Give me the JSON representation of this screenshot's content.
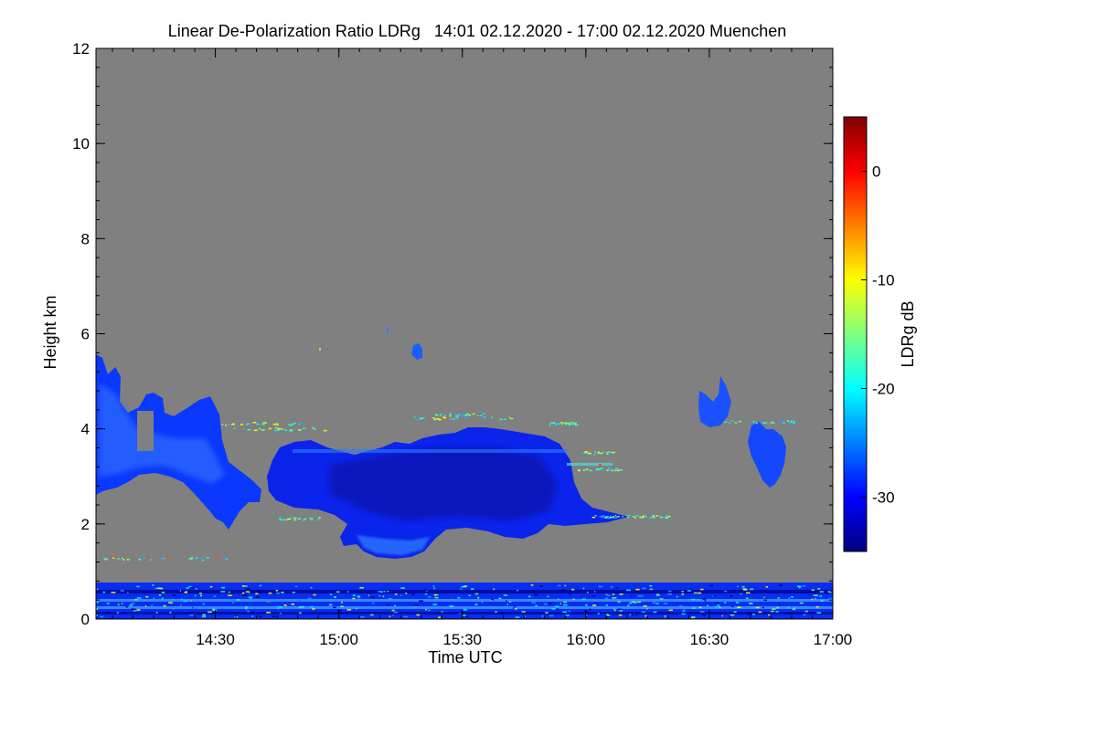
{
  "chart_data": {
    "type": "heatmap",
    "title": "Linear De-Polarization Ratio LDRg   14:01 02.12.2020 - 17:00 02.12.2020 Muenchen",
    "xlabel": "Time UTC",
    "ylabel": "Height km",
    "x_range": [
      "14:01",
      "17:00"
    ],
    "x_ticks": [
      "14:30",
      "15:00",
      "15:30",
      "16:00",
      "16:30",
      "17:00"
    ],
    "y_range": [
      0,
      12
    ],
    "y_ticks": [
      "0",
      "2",
      "4",
      "6",
      "8",
      "10",
      "12"
    ],
    "colorbar": {
      "label": "LDRg dB",
      "range": [
        -35,
        5
      ],
      "ticks": [
        "0",
        "-10",
        "-20",
        "-30"
      ],
      "colormap": "jet"
    },
    "background_color": "#808080",
    "features": [
      {
        "start": "14:01",
        "end": "14:45",
        "bottom_km": 2.0,
        "top_km": 5.5,
        "typical_db": -30
      },
      {
        "start": "14:44",
        "end": "16:10",
        "bottom_km": 1.2,
        "top_km": 4.0,
        "typical_db": -33
      },
      {
        "start": "16:28",
        "end": "16:38",
        "bottom_km": 3.9,
        "top_km": 5.0,
        "typical_db": -28
      },
      {
        "start": "16:44",
        "end": "16:52",
        "bottom_km": 2.8,
        "top_km": 4.1,
        "typical_db": -29
      },
      {
        "start": "14:01",
        "end": "17:00",
        "bottom_km": 0.0,
        "top_km": 0.7,
        "typical_db": -30
      }
    ]
  }
}
